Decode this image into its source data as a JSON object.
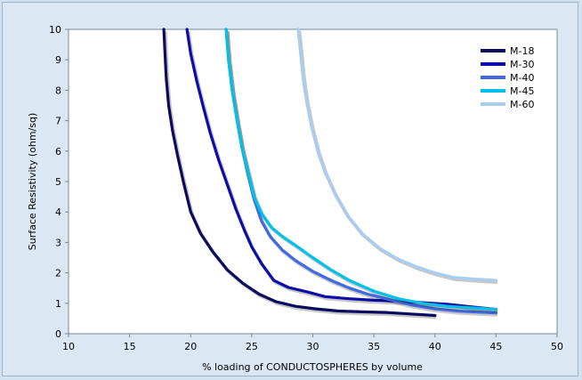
{
  "chart_data": {
    "type": "line",
    "title": "",
    "xlabel": "% loading of CONDUCTOSPHERES by volume",
    "ylabel": "Surface Resistivity (ohm/sq)",
    "xlim": [
      10,
      50
    ],
    "ylim": [
      0,
      10
    ],
    "xticks": [
      10,
      15,
      20,
      25,
      30,
      35,
      40,
      45,
      50
    ],
    "yticks": [
      0,
      1,
      2,
      3,
      4,
      5,
      6,
      7,
      8,
      9,
      10
    ],
    "grid": false,
    "legend_position": "top-right",
    "series": [
      {
        "name": "M-18",
        "color": "#0a0a5e",
        "x": [
          17.8,
          17.9,
          18.0,
          18.2,
          18.5,
          18.9,
          19.4,
          20.0,
          20.8,
          21.8,
          23.0,
          24.3,
          25.6,
          27.0,
          28.6,
          30.2,
          32.0,
          34.0,
          36.0,
          38.0,
          40.0
        ],
        "y": [
          10.0,
          9.2,
          8.4,
          7.5,
          6.7,
          5.9,
          5.0,
          4.0,
          3.3,
          2.7,
          2.1,
          1.65,
          1.3,
          1.05,
          0.9,
          0.82,
          0.75,
          0.72,
          0.7,
          0.65,
          0.6
        ]
      },
      {
        "name": "M-30",
        "color": "#0c0ca8",
        "x": [
          19.7,
          20.0,
          20.5,
          21.0,
          21.6,
          22.3,
          23.0,
          23.7,
          24.4,
          25.0,
          25.8,
          26.8,
          28.0,
          29.5,
          31.0,
          33.0,
          35.0,
          37.0,
          39.0,
          41.0,
          43.0,
          45.0
        ],
        "y": [
          10.0,
          9.2,
          8.3,
          7.5,
          6.6,
          5.7,
          4.9,
          4.1,
          3.4,
          2.85,
          2.3,
          1.75,
          1.52,
          1.38,
          1.22,
          1.15,
          1.1,
          1.07,
          1.02,
          0.97,
          0.88,
          0.8
        ]
      },
      {
        "name": "M-40",
        "color": "#4169e1",
        "x": [
          22.9,
          23.1,
          23.4,
          23.8,
          24.2,
          24.7,
          25.2,
          25.8,
          26.5,
          27.5,
          28.6,
          30.0,
          31.5,
          33.0,
          34.5,
          36.0,
          38.0,
          40.0,
          42.0,
          45.0
        ],
        "y": [
          10.0,
          9.0,
          8.0,
          7.0,
          6.1,
          5.2,
          4.4,
          3.7,
          3.2,
          2.75,
          2.4,
          2.05,
          1.75,
          1.5,
          1.3,
          1.15,
          0.95,
          0.82,
          0.74,
          0.68
        ]
      },
      {
        "name": "M-45",
        "color": "#00c0e8",
        "x": [
          22.9,
          23.1,
          23.4,
          23.8,
          24.2,
          24.7,
          25.2,
          25.8,
          26.6,
          27.5,
          28.6,
          30.0,
          31.5,
          33.0,
          35.0,
          37.0,
          39.0,
          41.0,
          43.0,
          45.0
        ],
        "y": [
          10.0,
          9.0,
          8.0,
          7.0,
          6.1,
          5.3,
          4.5,
          3.95,
          3.5,
          3.2,
          2.9,
          2.5,
          2.1,
          1.75,
          1.4,
          1.15,
          1.0,
          0.9,
          0.85,
          0.8
        ]
      },
      {
        "name": "M-60",
        "color": "#a8cdf2",
        "x": [
          28.8,
          29.0,
          29.2,
          29.5,
          29.9,
          30.4,
          31.0,
          31.8,
          32.8,
          34.0,
          35.5,
          37.0,
          38.5,
          40.0,
          41.5,
          43.0,
          45.0
        ],
        "y": [
          10.0,
          9.2,
          8.4,
          7.6,
          6.8,
          6.0,
          5.3,
          4.6,
          3.9,
          3.3,
          2.8,
          2.45,
          2.2,
          2.0,
          1.85,
          1.8,
          1.75
        ]
      }
    ]
  }
}
